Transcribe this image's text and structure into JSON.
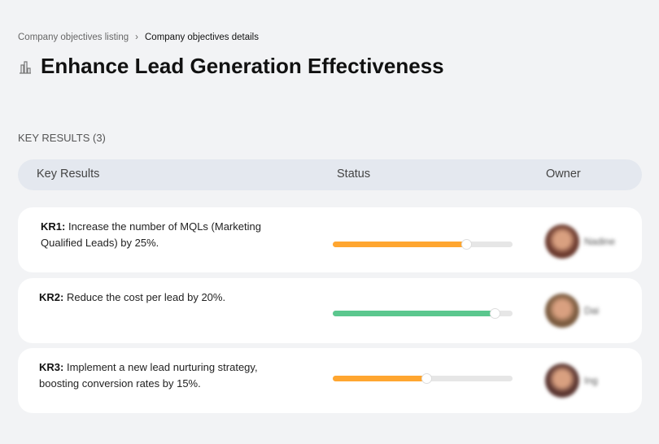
{
  "breadcrumb": {
    "items": [
      "Company objectives listing",
      "Company objectives details"
    ]
  },
  "page": {
    "title": "Enhance Lead Generation Effectiveness",
    "icon": "building-icon"
  },
  "section": {
    "label": "KEY RESULTS (3)"
  },
  "table": {
    "columns": [
      "Key Results",
      "Status",
      "Owner"
    ],
    "rows": [
      {
        "id": "KR1:",
        "text": " Increase the number of MQLs (Marketing Qualified Leads) by 25%.",
        "progress": 74,
        "color": "#ffa630",
        "owner": "Nadine",
        "avatar": "#6b3a2e"
      },
      {
        "id": "KR2:",
        "text": " Reduce the cost per lead by 20%.",
        "progress": 90,
        "color": "#5bc78e",
        "owner": "Dai",
        "avatar": "#7a5a3e"
      },
      {
        "id": "KR3:",
        "text": " Implement a new lead nurturing strategy, boosting conversion rates by 15%.",
        "progress": 52,
        "color": "#ffa630",
        "owner": "Ing",
        "avatar": "#5a3530"
      }
    ]
  }
}
